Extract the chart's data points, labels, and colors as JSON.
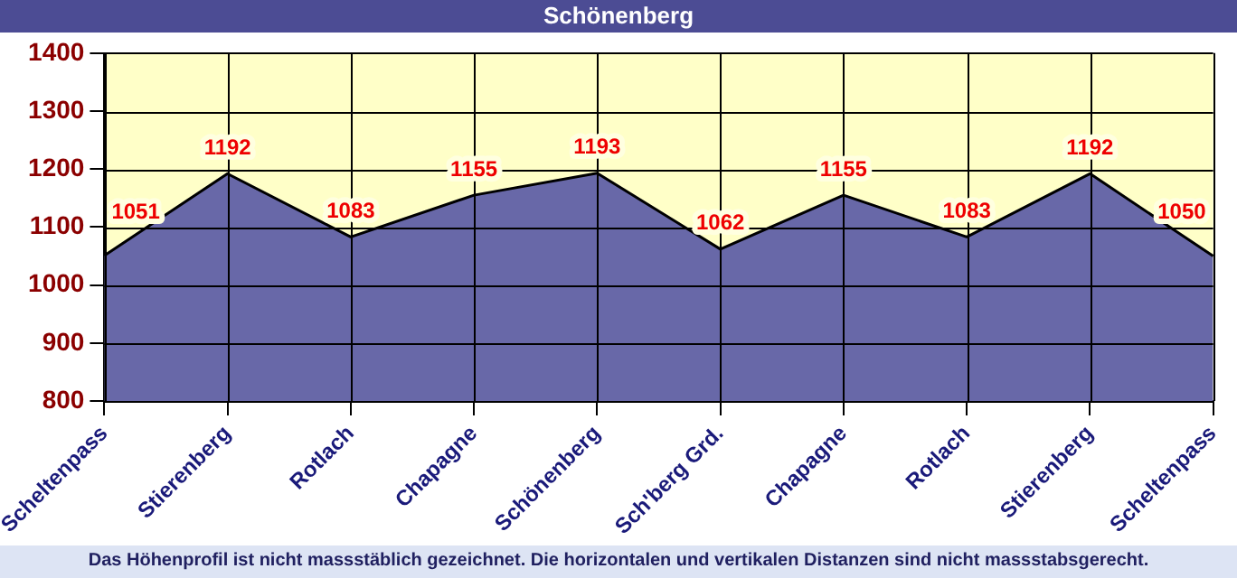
{
  "chart_data": {
    "type": "area",
    "title": "Schönenberg",
    "categories": [
      "Scheltenpass",
      "Stierenberg",
      "Rotlach",
      "Chapagne",
      "Schönenberg",
      "Sch'berg Grd.",
      "Chapagne",
      "Rotlach",
      "Stierenberg",
      "Scheltenpass"
    ],
    "series": [
      {
        "color": "#6868a8",
        "values": [
          1051,
          1192,
          1083,
          1155,
          1193,
          1062,
          1155,
          1083,
          1192,
          1050
        ]
      }
    ],
    "ylim": [
      800,
      1400
    ],
    "yticks": [
      800,
      900,
      1000,
      1100,
      1200,
      1300,
      1400
    ],
    "bands": [
      {
        "axis": "y",
        "from": 800,
        "to": 1400,
        "color": "#ffffc8"
      }
    ],
    "grid": true,
    "legend": false,
    "marker": "none",
    "line_style": "solid",
    "data_labels": true,
    "annotations": [
      "Das Höhenprofil ist nicht massstäblich gezeichnet. Die horizontalen und vertikalen Distanzen sind nicht massstabsgerecht."
    ]
  }
}
